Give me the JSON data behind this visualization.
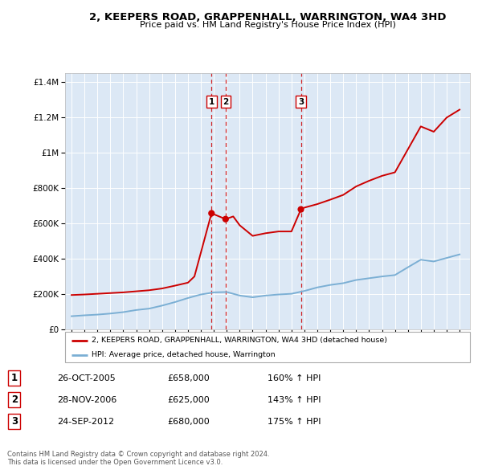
{
  "title": "2, KEEPERS ROAD, GRAPPENHALL, WARRINGTON, WA4 3HD",
  "subtitle": "Price paid vs. HM Land Registry's House Price Index (HPI)",
  "bg_color": "#ffffff",
  "plot_bg_color": "#dce8f5",
  "sale_dates": [
    2005.82,
    2006.91,
    2012.73
  ],
  "sale_prices": [
    658000,
    625000,
    680000
  ],
  "sale_labels": [
    "1",
    "2",
    "3"
  ],
  "hpi_years": [
    1995,
    1996,
    1997,
    1998,
    1999,
    2000,
    2001,
    2002,
    2003,
    2004,
    2005,
    2006,
    2007,
    2008,
    2009,
    2010,
    2011,
    2012,
    2013,
    2014,
    2015,
    2016,
    2017,
    2018,
    2019,
    2020,
    2021,
    2022,
    2023,
    2024,
    2025
  ],
  "hpi_values": [
    75000,
    80000,
    84000,
    90000,
    98000,
    110000,
    118000,
    135000,
    155000,
    178000,
    198000,
    210000,
    212000,
    192000,
    182000,
    192000,
    198000,
    202000,
    218000,
    238000,
    252000,
    262000,
    280000,
    290000,
    300000,
    308000,
    352000,
    395000,
    385000,
    405000,
    425000
  ],
  "red_line_years": [
    1995,
    1996,
    1997,
    1998,
    1999,
    2000,
    2001,
    2002,
    2003,
    2004,
    2004.5,
    2005.82,
    2006.91,
    2007.5,
    2008,
    2009,
    2010,
    2011,
    2012,
    2012.73,
    2013,
    2014,
    2015,
    2016,
    2017,
    2018,
    2019,
    2020,
    2021,
    2022,
    2023,
    2024,
    2025
  ],
  "red_line_values": [
    195000,
    198000,
    202000,
    206000,
    210000,
    216000,
    222000,
    232000,
    248000,
    265000,
    300000,
    658000,
    625000,
    640000,
    590000,
    530000,
    545000,
    555000,
    555000,
    680000,
    690000,
    710000,
    735000,
    762000,
    810000,
    842000,
    870000,
    890000,
    1020000,
    1150000,
    1120000,
    1200000,
    1245000
  ],
  "red_color": "#cc0000",
  "blue_color": "#7bafd4",
  "dashed_line_color": "#cc0000",
  "legend_entries": [
    "2, KEEPERS ROAD, GRAPPENHALL, WARRINGTON, WA4 3HD (detached house)",
    "HPI: Average price, detached house, Warrington"
  ],
  "table_data": [
    [
      "1",
      "26-OCT-2005",
      "£658,000",
      "160% ↑ HPI"
    ],
    [
      "2",
      "28-NOV-2006",
      "£625,000",
      "143% ↑ HPI"
    ],
    [
      "3",
      "24-SEP-2012",
      "£680,000",
      "175% ↑ HPI"
    ]
  ],
  "footer_text": "Contains HM Land Registry data © Crown copyright and database right 2024.\nThis data is licensed under the Open Government Licence v3.0.",
  "ylim": [
    0,
    1450000
  ],
  "xlim_start": 1994.5,
  "xlim_end": 2025.8,
  "ytick_labels": [
    "£0",
    "£200K",
    "£400K",
    "£600K",
    "£800K",
    "£1M",
    "£1.2M",
    "£1.4M"
  ],
  "ytick_values": [
    0,
    200000,
    400000,
    600000,
    800000,
    1000000,
    1200000,
    1400000
  ],
  "xtick_years": [
    1995,
    1996,
    1997,
    1998,
    1999,
    2000,
    2001,
    2002,
    2003,
    2004,
    2005,
    2006,
    2007,
    2008,
    2009,
    2010,
    2011,
    2012,
    2013,
    2014,
    2015,
    2016,
    2017,
    2018,
    2019,
    2020,
    2021,
    2022,
    2023,
    2024,
    2025
  ]
}
